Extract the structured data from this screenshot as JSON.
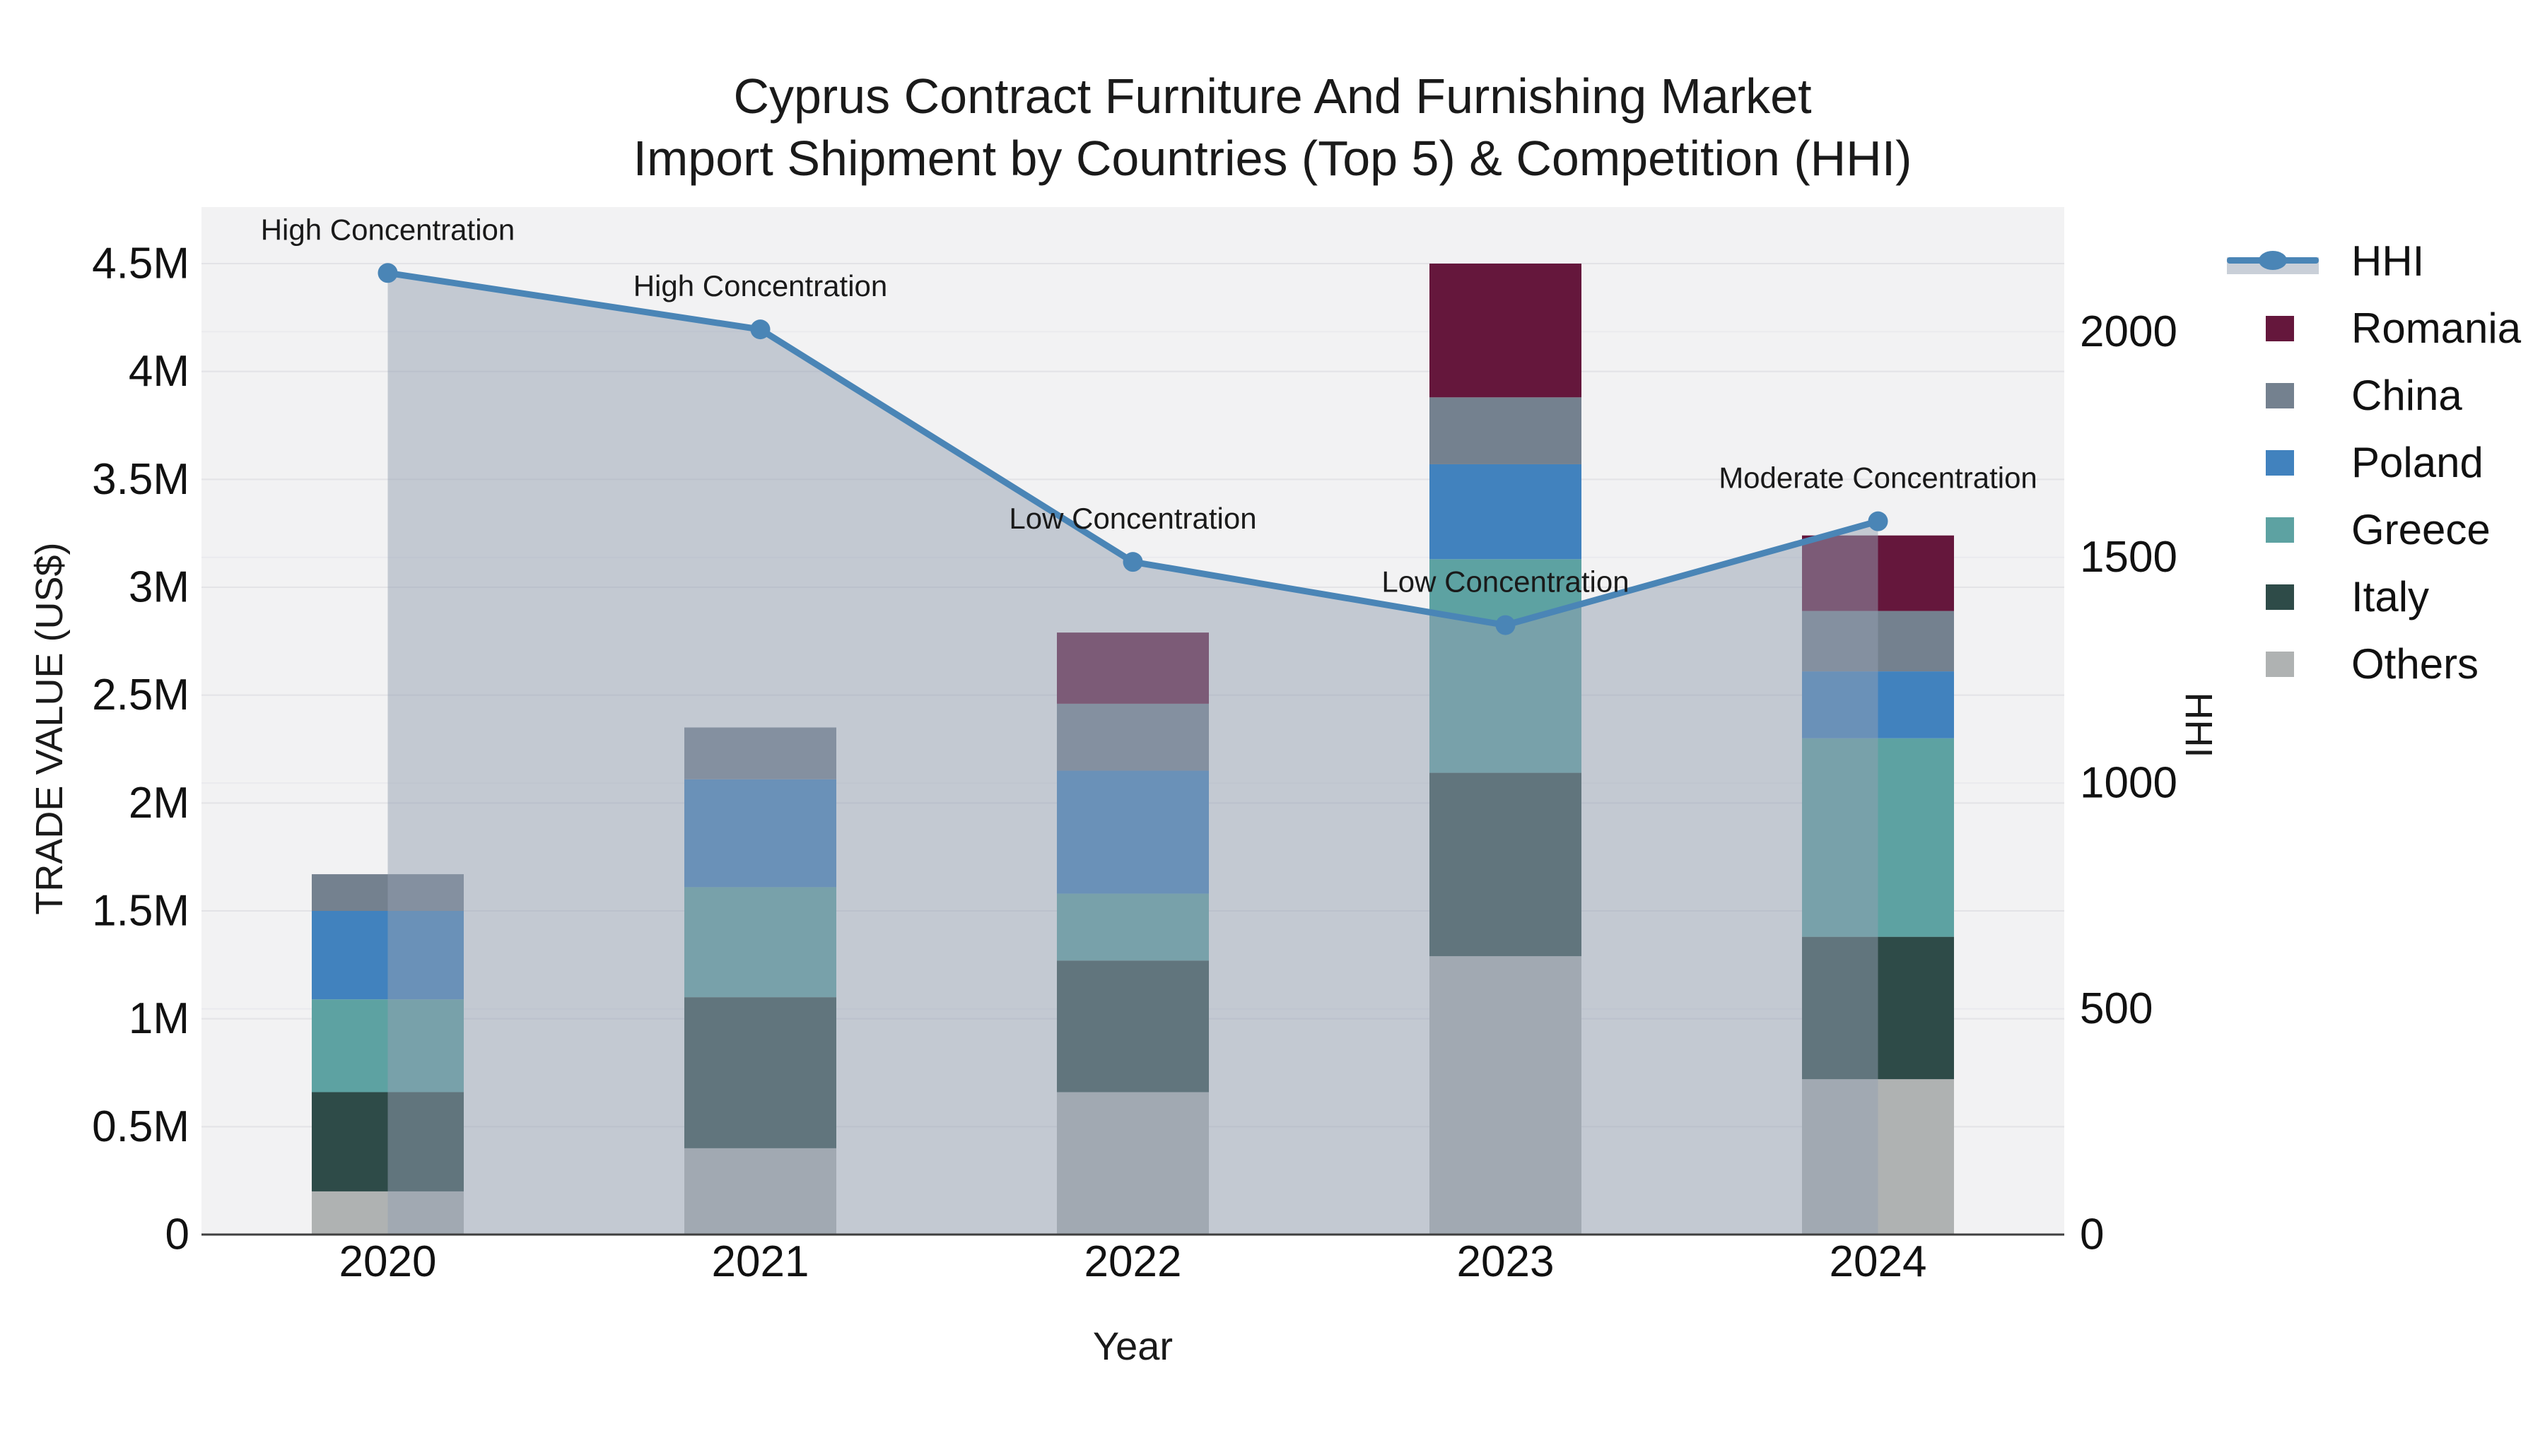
{
  "title": {
    "line1": "Cyprus Contract Furniture And Furnishing Market",
    "line2": "Import Shipment by Countries (Top 5) & Competition (HHI)"
  },
  "axes": {
    "x_title": "Year",
    "y_left_title": "TRADE VALUE (US$)",
    "y_right_title": "HHI"
  },
  "legend": {
    "order": [
      "HHI",
      "Romania",
      "China",
      "Poland",
      "Greece",
      "Italy",
      "Others"
    ]
  },
  "chart_data": {
    "type": "bar",
    "subtype": "stacked-bars-with-hhi-line-and-area",
    "title": "Cyprus Contract Furniture And Furnishing Market Import Shipment by Countries (Top 5) & Competition (HHI)",
    "xlabel": "Year",
    "ylabel_left": "TRADE VALUE (US$)",
    "ylabel_right": "HHI",
    "categories": [
      "2020",
      "2021",
      "2022",
      "2023",
      "2024"
    ],
    "bar_series": [
      {
        "name": "Others",
        "color": "#afb2b2",
        "values": [
          200000,
          400000,
          660000,
          1290000,
          720000
        ]
      },
      {
        "name": "Italy",
        "color": "#2e4b48",
        "values": [
          460000,
          700000,
          610000,
          850000,
          660000
        ]
      },
      {
        "name": "Greece",
        "color": "#5da2a2",
        "values": [
          430000,
          510000,
          310000,
          990000,
          920000
        ]
      },
      {
        "name": "Poland",
        "color": "#4182be",
        "values": [
          410000,
          500000,
          570000,
          440000,
          310000
        ]
      },
      {
        "name": "China",
        "color": "#74818f",
        "values": [
          170000,
          240000,
          310000,
          310000,
          280000
        ]
      },
      {
        "name": "Romania",
        "color": "#65173c",
        "values": [
          0,
          0,
          330000,
          620000,
          350000
        ]
      }
    ],
    "bar_totals": [
      1670000,
      2350000,
      2790000,
      4500000,
      3240000
    ],
    "line_series": {
      "name": "HHI",
      "color": "#4a85b6",
      "area_fill": "rgba(148,160,178,0.5)",
      "values": [
        2130,
        2005,
        1490,
        1350,
        1580
      ]
    },
    "annotations": [
      {
        "category": "2020",
        "text": "High Concentration"
      },
      {
        "category": "2021",
        "text": "High Concentration"
      },
      {
        "category": "2022",
        "text": "Low Concentration"
      },
      {
        "category": "2023",
        "text": "Low Concentration"
      },
      {
        "category": "2024",
        "text": "Moderate Concentration"
      }
    ],
    "y_left": {
      "ticks": [
        {
          "value": 0,
          "label": "0"
        },
        {
          "value": 500000,
          "label": "0.5M"
        },
        {
          "value": 1000000,
          "label": "1M"
        },
        {
          "value": 1500000,
          "label": "1.5M"
        },
        {
          "value": 2000000,
          "label": "2M"
        },
        {
          "value": 2500000,
          "label": "2.5M"
        },
        {
          "value": 3000000,
          "label": "3M"
        },
        {
          "value": 3500000,
          "label": "3.5M"
        },
        {
          "value": 4000000,
          "label": "4M"
        },
        {
          "value": 4500000,
          "label": "4.5M"
        }
      ],
      "range": [
        0,
        4762000
      ]
    },
    "y_right": {
      "ticks": [
        {
          "value": 0,
          "label": "0"
        },
        {
          "value": 500,
          "label": "500"
        },
        {
          "value": 1000,
          "label": "1000"
        },
        {
          "value": 1500,
          "label": "1500"
        },
        {
          "value": 2000,
          "label": "2000"
        }
      ],
      "range": [
        0,
        2276
      ]
    },
    "legend_position": "right",
    "grid": true,
    "colors": {
      "plot_background": "#f2f2f3",
      "gridline": "#e3e3e6",
      "gridline_secondary": "#eaeaee",
      "axis_line": "#3f3f3f",
      "text": "#111111"
    }
  }
}
